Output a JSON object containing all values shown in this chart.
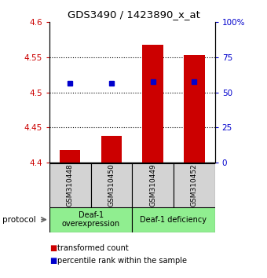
{
  "title": "GDS3490 / 1423890_x_at",
  "samples": [
    "GSM310448",
    "GSM310450",
    "GSM310449",
    "GSM310452"
  ],
  "red_values": [
    4.418,
    4.438,
    4.568,
    4.553
  ],
  "blue_values": [
    4.513,
    4.513,
    4.515,
    4.515
  ],
  "ylim_left": [
    4.4,
    4.6
  ],
  "ylim_right": [
    0,
    100
  ],
  "yticks_left": [
    4.4,
    4.45,
    4.5,
    4.55,
    4.6
  ],
  "yticks_right": [
    0,
    25,
    50,
    75,
    100
  ],
  "ytick_labels_left": [
    "4.4",
    "4.45",
    "4.5",
    "4.55",
    "4.6"
  ],
  "ytick_labels_right": [
    "0",
    "25",
    "50",
    "75",
    "100%"
  ],
  "red_color": "#cc0000",
  "blue_color": "#0000cc",
  "bar_width": 0.5,
  "groups": [
    {
      "label": "Deaf-1\noverexpression",
      "color": "#90ee90"
    },
    {
      "label": "Deaf-1 deficiency",
      "color": "#90ee90"
    }
  ],
  "protocol_label": "protocol",
  "legend_red": "transformed count",
  "legend_blue": "percentile rank within the sample",
  "sample_box_color": "#d3d3d3",
  "dotted_lines": [
    4.45,
    4.5,
    4.55
  ]
}
